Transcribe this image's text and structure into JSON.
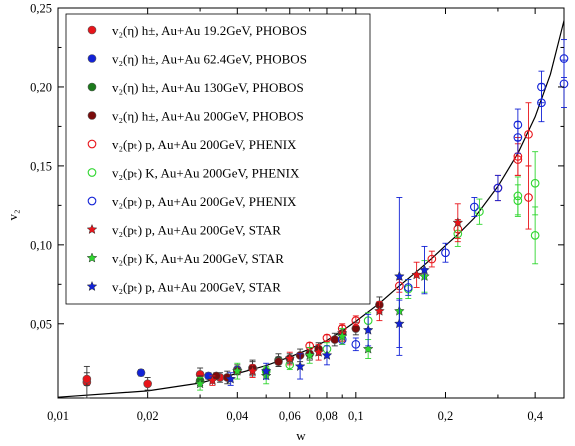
{
  "chart_data": {
    "type": "scatter",
    "xlabel": "w",
    "ylabel": "v₂",
    "xscale": "log",
    "xlim": [
      0.01,
      0.5
    ],
    "ylim": [
      0.003,
      0.25
    ],
    "x_ticks": [
      {
        "value": 0.01,
        "label": "0,01"
      },
      {
        "value": 0.02,
        "label": "0,02"
      },
      {
        "value": 0.04,
        "label": "0,04"
      },
      {
        "value": 0.06,
        "label": "0,06"
      },
      {
        "value": 0.08,
        "label": "0,08"
      },
      {
        "value": 0.1,
        "label": "0,1"
      },
      {
        "value": 0.2,
        "label": "0,2"
      },
      {
        "value": 0.4,
        "label": "0,4"
      }
    ],
    "x_minor_ticks": [
      0.03,
      0.05,
      0.07,
      0.09,
      0.3
    ],
    "y_ticks": [
      {
        "value": 0.05,
        "label": "0,05"
      },
      {
        "value": 0.1,
        "label": "0,10"
      },
      {
        "value": 0.15,
        "label": "0,15"
      },
      {
        "value": 0.2,
        "label": "0,20"
      },
      {
        "value": 0.25,
        "label": "0,25"
      }
    ],
    "grid": false,
    "legend_position": "top-left",
    "fit_curve": {
      "points": [
        [
          0.01,
          0.0035
        ],
        [
          0.02,
          0.0075
        ],
        [
          0.03,
          0.0125
        ],
        [
          0.04,
          0.0185
        ],
        [
          0.05,
          0.0235
        ],
        [
          0.06,
          0.029
        ],
        [
          0.07,
          0.034
        ],
        [
          0.08,
          0.0395
        ],
        [
          0.09,
          0.0455
        ],
        [
          0.1,
          0.0515
        ],
        [
          0.12,
          0.063
        ],
        [
          0.14,
          0.074
        ],
        [
          0.16,
          0.083
        ],
        [
          0.18,
          0.0915
        ],
        [
          0.2,
          0.0995
        ],
        [
          0.22,
          0.1065
        ],
        [
          0.25,
          0.117
        ],
        [
          0.3,
          0.137
        ],
        [
          0.35,
          0.158
        ],
        [
          0.4,
          0.181
        ],
        [
          0.45,
          0.208
        ],
        [
          0.5,
          0.242
        ],
        [
          0.53,
          0.262
        ]
      ]
    },
    "series": [
      {
        "name": "v₂(η) h±, Au+Au 19.2GeV, PHOBOS",
        "marker": "dot",
        "color": "#e8141a",
        "points": [
          [
            0.0125,
            0.013,
            0.01
          ],
          [
            0.0125,
            0.015,
            0.004
          ],
          [
            0.02,
            0.012,
            0.004
          ],
          [
            0.03,
            0.018,
            0.004
          ],
          [
            0.035,
            0.016,
            0.003
          ]
        ]
      },
      {
        "name": "v₂(η) h±, Au+Au 62.4GeV, PHOBOS",
        "marker": "dot",
        "color": "#1222d6",
        "points": [
          [
            0.019,
            0.019,
            0.002
          ],
          [
            0.032,
            0.017,
            0.002
          ],
          [
            0.04,
            0.021,
            0.003
          ]
        ]
      },
      {
        "name": "v₂(η) h±, Au+Au 130GeV, PHOBOS",
        "marker": "dot",
        "color": "#1b7a1b",
        "points": [
          [
            0.03,
            0.014,
            0.003
          ],
          [
            0.045,
            0.022,
            0.005
          ],
          [
            0.05,
            0.02,
            0.002
          ],
          [
            0.055,
            0.027,
            0.004
          ]
        ]
      },
      {
        "name": "v₂(η) h±, Au+Au 200GeV, PHOBOS",
        "marker": "dot",
        "color": "#7a0c0c",
        "points": [
          [
            0.034,
            0.017,
            0.002
          ],
          [
            0.037,
            0.016,
            0.004
          ],
          [
            0.04,
            0.02,
            0.002
          ],
          [
            0.045,
            0.022,
            0.004
          ],
          [
            0.055,
            0.026,
            0.003
          ],
          [
            0.06,
            0.028,
            0.003
          ],
          [
            0.065,
            0.03,
            0.004
          ],
          [
            0.07,
            0.031,
            0.004
          ],
          [
            0.075,
            0.034,
            0.004
          ],
          [
            0.085,
            0.04,
            0.004
          ],
          [
            0.09,
            0.044,
            0.005
          ],
          [
            0.1,
            0.047,
            0.004
          ],
          [
            0.12,
            0.062,
            0.005
          ]
        ]
      },
      {
        "name": "v₂(pₜ) p, Au+Au 200GeV, PHENIX",
        "marker": "circle",
        "color": "#e8141a",
        "points": [
          [
            0.07,
            0.036,
            0.002
          ],
          [
            0.08,
            0.041,
            0.002
          ],
          [
            0.09,
            0.047,
            0.003
          ],
          [
            0.1,
            0.052,
            0.003
          ],
          [
            0.14,
            0.074,
            0.004
          ],
          [
            0.18,
            0.091,
            0.005
          ],
          [
            0.22,
            0.11,
            0.006
          ],
          [
            0.3,
            0.136,
            0.008
          ],
          [
            0.35,
            0.154,
            0.01
          ],
          [
            0.35,
            0.156,
            0.012
          ],
          [
            0.38,
            0.17,
            0.02
          ],
          [
            0.38,
            0.13,
            0.02
          ]
        ]
      },
      {
        "name": "v₂(pₜ) K, Au+Au 200GeV, PHENIX",
        "marker": "circle",
        "color": "#2fd62f",
        "points": [
          [
            0.05,
            0.02,
            0.003
          ],
          [
            0.06,
            0.024,
            0.003
          ],
          [
            0.08,
            0.034,
            0.004
          ],
          [
            0.11,
            0.052,
            0.005
          ],
          [
            0.15,
            0.072,
            0.006
          ],
          [
            0.22,
            0.107,
            0.008
          ],
          [
            0.26,
            0.121,
            0.008
          ],
          [
            0.35,
            0.128,
            0.01
          ],
          [
            0.35,
            0.131,
            0.012
          ],
          [
            0.4,
            0.106,
            0.018
          ],
          [
            0.4,
            0.139,
            0.02
          ]
        ]
      },
      {
        "name": "v₂(pₜ) p, Au+Au 200GeV, PHENIX",
        "marker": "circle",
        "color": "#1222d6",
        "points": [
          [
            0.09,
            0.04,
            0.003
          ],
          [
            0.1,
            0.037,
            0.004
          ],
          [
            0.15,
            0.073,
            0.005
          ],
          [
            0.2,
            0.095,
            0.006
          ],
          [
            0.25,
            0.124,
            0.006
          ],
          [
            0.3,
            0.136,
            0.008
          ],
          [
            0.35,
            0.168,
            0.01
          ],
          [
            0.35,
            0.176,
            0.01
          ],
          [
            0.42,
            0.19,
            0.012
          ],
          [
            0.42,
            0.2,
            0.01
          ],
          [
            0.5,
            0.202,
            0.015
          ],
          [
            0.5,
            0.218,
            0.012
          ]
        ]
      },
      {
        "name": "v₂(pₜ) p, Au+Au 200GeV, STAR",
        "marker": "star",
        "color": "#e8141a",
        "points": [
          [
            0.033,
            0.014,
            0.003
          ],
          [
            0.045,
            0.02,
            0.004
          ],
          [
            0.06,
            0.028,
            0.004
          ],
          [
            0.075,
            0.032,
            0.005
          ],
          [
            0.09,
            0.044,
            0.005
          ],
          [
            0.12,
            0.058,
            0.006
          ],
          [
            0.16,
            0.081,
            0.008
          ],
          [
            0.22,
            0.114,
            0.012
          ]
        ]
      },
      {
        "name": "v₂(pₜ) K, Au+Au 200GeV, STAR",
        "marker": "star",
        "color": "#2fd62f",
        "points": [
          [
            0.03,
            0.012,
            0.004
          ],
          [
            0.04,
            0.02,
            0.005
          ],
          [
            0.05,
            0.017,
            0.005
          ],
          [
            0.07,
            0.03,
            0.005
          ],
          [
            0.09,
            0.042,
            0.005
          ],
          [
            0.11,
            0.034,
            0.006
          ],
          [
            0.14,
            0.058,
            0.008
          ],
          [
            0.17,
            0.08,
            0.01
          ]
        ]
      },
      {
        "name": "v₂(pₜ) p, Au+Au 200GeV, STAR",
        "marker": "star",
        "color": "#1222d6",
        "points": [
          [
            0.038,
            0.015,
            0.004
          ],
          [
            0.05,
            0.02,
            0.005
          ],
          [
            0.065,
            0.023,
            0.008
          ],
          [
            0.08,
            0.03,
            0.006
          ],
          [
            0.11,
            0.046,
            0.01
          ],
          [
            0.14,
            0.05,
            0.015
          ],
          [
            0.14,
            0.08,
            0.05
          ],
          [
            0.17,
            0.084,
            0.015
          ]
        ]
      }
    ]
  }
}
